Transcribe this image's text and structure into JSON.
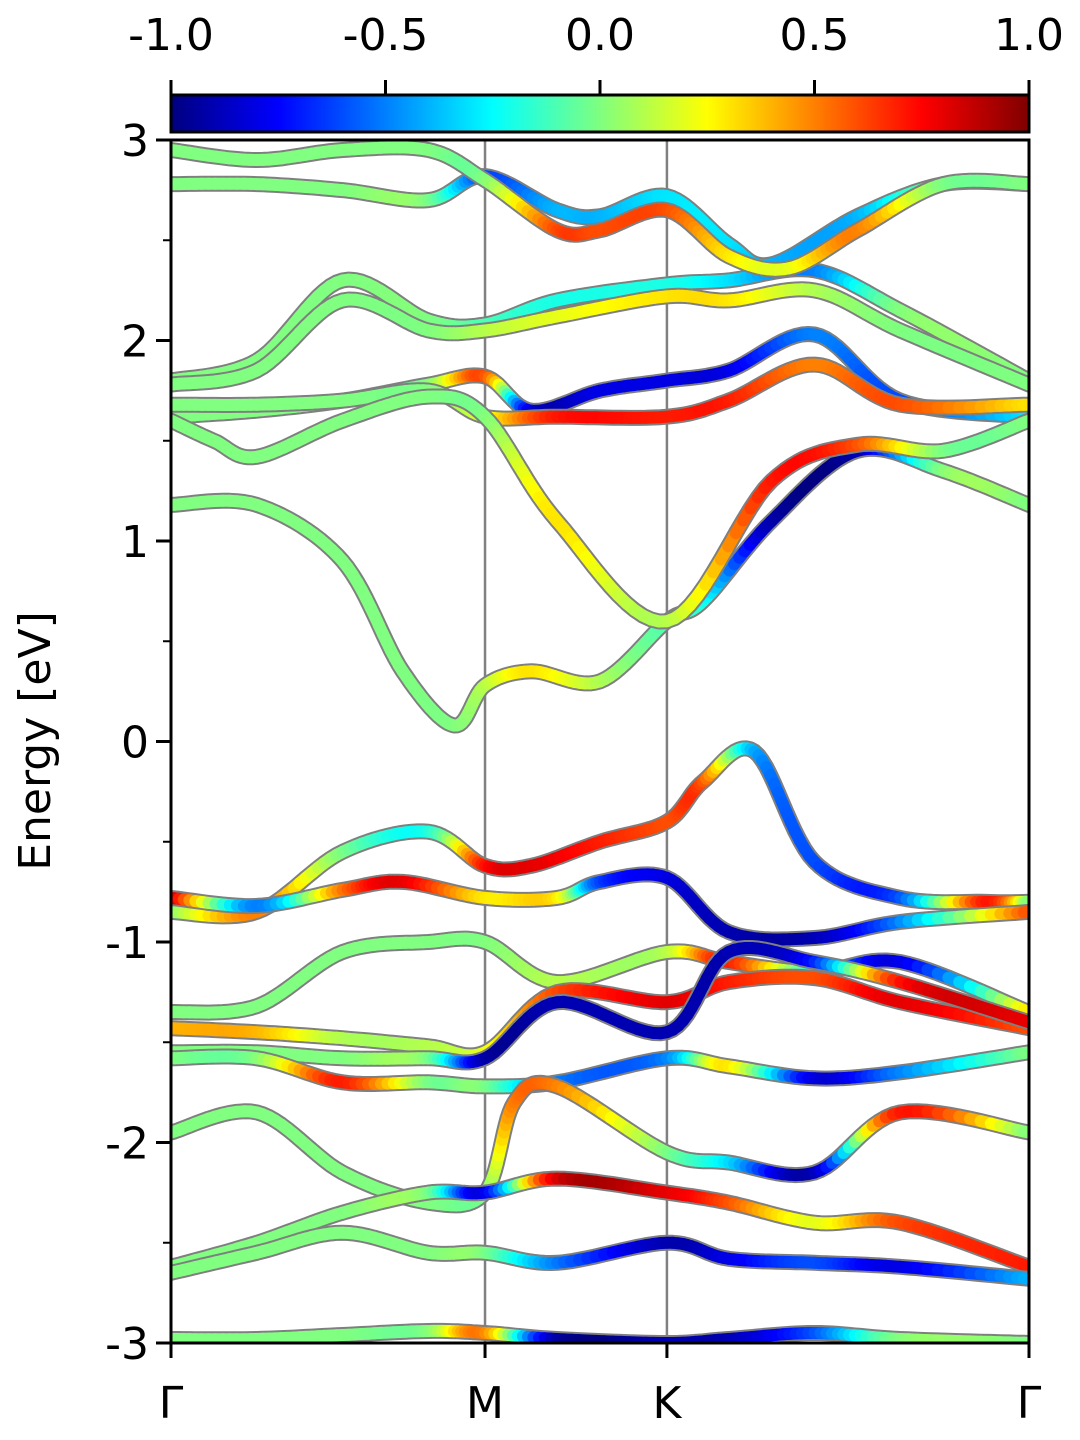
{
  "chart_data": {
    "type": "line",
    "title": "",
    "xlabel": "",
    "ylabel": "Energy [eV]",
    "ylim": [
      -3,
      3
    ],
    "yticks": [
      {
        "value": 3,
        "label": "3"
      },
      {
        "value": 2,
        "label": "2"
      },
      {
        "value": 1,
        "label": "1"
      },
      {
        "value": 0,
        "label": "0"
      },
      {
        "value": -1,
        "label": "-1"
      },
      {
        "value": -2,
        "label": "-2"
      },
      {
        "value": -3,
        "label": "-3"
      }
    ],
    "k_path": [
      {
        "label": "Γ",
        "position": 0.0
      },
      {
        "label": "M",
        "position": 0.366
      },
      {
        "label": "K",
        "position": 0.578
      },
      {
        "label": "Γ",
        "position": 1.0
      }
    ],
    "colorbar": {
      "colormap": "jet",
      "range": [
        -1.0,
        1.0
      ],
      "ticks": [
        {
          "value": -1.0,
          "label": "-1.0"
        },
        {
          "value": -0.5,
          "label": "-0.5"
        },
        {
          "value": 0.0,
          "label": "0.0"
        },
        {
          "value": 0.5,
          "label": "0.5"
        },
        {
          "value": 1.0,
          "label": "1.0"
        }
      ]
    },
    "grid": false,
    "legend": "none",
    "line_outline_color": "#7f7f7f",
    "bands": [
      {
        "k": [
          0.0,
          0.1,
          0.2,
          0.27,
          0.33,
          0.366,
          0.42,
          0.5,
          0.578,
          0.62,
          0.7,
          0.8,
          0.9,
          1.0
        ],
        "E": [
          1.18,
          1.18,
          0.9,
          0.35,
          0.08,
          0.28,
          0.35,
          0.3,
          0.6,
          0.7,
          1.1,
          1.45,
          1.35,
          1.18
        ],
        "c": [
          0.0,
          0.0,
          0.0,
          0.0,
          0.0,
          0.1,
          0.3,
          0.1,
          -0.1,
          -0.2,
          -0.9,
          -0.9,
          0.0,
          0.0
        ]
      },
      {
        "k": [
          0.0,
          0.1,
          0.2,
          0.3,
          0.366,
          0.42,
          0.5,
          0.578,
          0.62,
          0.68,
          0.75,
          0.85,
          0.95,
          1.0
        ],
        "E": [
          -0.85,
          -0.85,
          -0.55,
          -0.45,
          -0.62,
          -0.62,
          -0.5,
          -0.4,
          -0.2,
          -0.05,
          -0.6,
          -0.78,
          -0.8,
          -0.8
        ],
        "c": [
          0.0,
          0.5,
          0.0,
          -0.2,
          0.7,
          0.8,
          0.7,
          0.6,
          0.6,
          -0.4,
          -0.6,
          -0.6,
          0.7,
          0.0
        ]
      },
      {
        "k": [
          0.0,
          0.1,
          0.2,
          0.27,
          0.366,
          0.45,
          0.5,
          0.578,
          0.65,
          0.75,
          0.85,
          1.0
        ],
        "E": [
          -0.78,
          -0.82,
          -0.74,
          -0.7,
          -0.78,
          -0.78,
          -0.7,
          -0.68,
          -0.95,
          -0.98,
          -0.9,
          -0.85
        ],
        "c": [
          0.9,
          -0.5,
          0.5,
          0.8,
          0.3,
          0.3,
          -0.6,
          -0.8,
          -0.9,
          -0.9,
          -0.5,
          0.6
        ]
      },
      {
        "k": [
          0.0,
          0.1,
          0.2,
          0.3,
          0.366,
          0.42,
          0.5,
          0.578,
          0.65,
          0.75,
          0.85,
          1.0
        ],
        "E": [
          1.62,
          1.65,
          1.7,
          1.78,
          1.82,
          1.65,
          1.75,
          1.8,
          1.85,
          2.03,
          1.7,
          1.62
        ],
        "c": [
          0.0,
          0.0,
          0.0,
          0.0,
          0.6,
          -0.8,
          -0.8,
          -0.8,
          -0.8,
          -0.5,
          -0.6,
          -0.3
        ]
      },
      {
        "k": [
          0.0,
          0.1,
          0.2,
          0.3,
          0.366,
          0.45,
          0.578,
          0.65,
          0.75,
          0.85,
          1.0
        ],
        "E": [
          1.68,
          1.68,
          1.7,
          1.75,
          1.62,
          1.62,
          1.62,
          1.7,
          1.88,
          1.68,
          1.68
        ],
        "c": [
          0.0,
          0.0,
          0.0,
          0.0,
          0.2,
          0.7,
          0.7,
          0.7,
          0.5,
          0.6,
          0.3
        ]
      },
      {
        "k": [
          0.0,
          0.05,
          0.1,
          0.2,
          0.3,
          0.366,
          0.45,
          0.578,
          0.7,
          0.8,
          0.9,
          1.0
        ],
        "E": [
          1.6,
          1.5,
          1.42,
          1.6,
          1.72,
          1.62,
          1.1,
          0.6,
          1.3,
          1.48,
          1.45,
          1.6
        ],
        "c": [
          0.0,
          0.0,
          0.0,
          0.0,
          0.0,
          0.0,
          0.3,
          0.1,
          0.7,
          0.6,
          0.0,
          0.0
        ]
      },
      {
        "k": [
          0.0,
          0.1,
          0.2,
          0.3,
          0.366,
          0.45,
          0.578,
          0.65,
          0.75,
          0.85,
          1.0
        ],
        "E": [
          1.8,
          1.9,
          2.3,
          2.1,
          2.08,
          2.2,
          2.28,
          2.3,
          2.35,
          2.15,
          1.8
        ],
        "c": [
          0.0,
          0.0,
          0.0,
          0.0,
          -0.1,
          -0.2,
          -0.2,
          -0.3,
          -0.5,
          0.0,
          0.0
        ]
      },
      {
        "k": [
          0.0,
          0.1,
          0.2,
          0.3,
          0.366,
          0.45,
          0.578,
          0.65,
          0.75,
          0.85,
          1.0
        ],
        "E": [
          1.78,
          1.85,
          2.2,
          2.05,
          2.05,
          2.12,
          2.22,
          2.2,
          2.25,
          2.05,
          1.78
        ],
        "c": [
          0.0,
          0.0,
          0.0,
          0.0,
          0.1,
          0.2,
          0.3,
          0.3,
          0.1,
          0.0,
          0.0
        ]
      },
      {
        "k": [
          0.0,
          0.1,
          0.2,
          0.3,
          0.366,
          0.45,
          0.5,
          0.578,
          0.65,
          0.7,
          0.8,
          0.9,
          1.0
        ],
        "E": [
          2.78,
          2.78,
          2.75,
          2.7,
          2.82,
          2.65,
          2.62,
          2.72,
          2.48,
          2.38,
          2.62,
          2.78,
          2.78
        ],
        "c": [
          0.0,
          0.0,
          0.0,
          0.0,
          -0.6,
          -0.4,
          -0.4,
          -0.3,
          -0.3,
          -0.4,
          -0.4,
          0.0,
          0.0
        ]
      },
      {
        "k": [
          0.0,
          0.1,
          0.2,
          0.3,
          0.366,
          0.45,
          0.5,
          0.578,
          0.65,
          0.72,
          0.8,
          0.9,
          1.0
        ],
        "E": [
          2.95,
          2.9,
          2.95,
          2.95,
          2.8,
          2.55,
          2.55,
          2.65,
          2.42,
          2.36,
          2.55,
          2.78,
          2.78
        ],
        "c": [
          0.0,
          0.0,
          0.0,
          0.0,
          0.0,
          0.6,
          0.6,
          0.6,
          0.3,
          0.2,
          0.5,
          0.0,
          0.0
        ]
      },
      {
        "k": [
          0.0,
          0.1,
          0.2,
          0.3,
          0.366,
          0.45,
          0.578,
          0.65,
          0.75,
          0.85,
          1.0
        ],
        "E": [
          -1.35,
          -1.32,
          -1.05,
          -1.0,
          -1.0,
          -1.2,
          -1.05,
          -1.1,
          -1.15,
          -1.1,
          -1.35
        ],
        "c": [
          0.0,
          0.0,
          0.0,
          0.0,
          0.0,
          0.1,
          0.1,
          0.7,
          -0.2,
          -0.8,
          0.3
        ]
      },
      {
        "k": [
          0.0,
          0.1,
          0.2,
          0.3,
          0.366,
          0.45,
          0.578,
          0.65,
          0.75,
          0.85,
          1.0
        ],
        "E": [
          -1.43,
          -1.45,
          -1.48,
          -1.52,
          -1.55,
          -1.25,
          -1.3,
          -1.2,
          -1.18,
          -1.3,
          -1.43
        ],
        "c": [
          0.4,
          0.4,
          0.1,
          0.1,
          0.2,
          0.6,
          0.8,
          0.7,
          0.6,
          0.8,
          0.6
        ]
      },
      {
        "k": [
          0.0,
          0.1,
          0.2,
          0.3,
          0.366,
          0.45,
          0.578,
          0.65,
          0.75,
          0.85,
          1.0
        ],
        "E": [
          -1.55,
          -1.55,
          -1.58,
          -1.58,
          -1.58,
          -1.3,
          -1.45,
          -1.05,
          -1.1,
          -1.2,
          -1.4
        ],
        "c": [
          0.0,
          0.0,
          0.0,
          0.0,
          -0.9,
          -0.9,
          -0.9,
          -0.9,
          -0.7,
          0.7,
          0.8
        ]
      },
      {
        "k": [
          0.0,
          0.1,
          0.2,
          0.3,
          0.366,
          0.45,
          0.578,
          0.65,
          0.75,
          0.85,
          1.0
        ],
        "E": [
          -1.58,
          -1.58,
          -1.7,
          -1.7,
          -1.72,
          -1.7,
          -1.58,
          -1.62,
          -1.68,
          -1.65,
          -1.55
        ],
        "c": [
          0.0,
          0.0,
          0.7,
          0.0,
          0.0,
          -0.5,
          -0.5,
          0.3,
          -0.8,
          -0.5,
          0.0
        ]
      },
      {
        "k": [
          0.0,
          0.1,
          0.2,
          0.3,
          0.366,
          0.4,
          0.45,
          0.578,
          0.65,
          0.75,
          0.85,
          1.0
        ],
        "E": [
          -1.95,
          -1.85,
          -2.15,
          -2.3,
          -2.25,
          -1.8,
          -1.72,
          -2.05,
          -2.1,
          -2.15,
          -1.85,
          -1.95
        ],
        "c": [
          0.0,
          0.0,
          0.0,
          0.0,
          0.0,
          0.5,
          0.5,
          0.0,
          -0.3,
          -0.9,
          0.7,
          0.0
        ]
      },
      {
        "k": [
          0.0,
          0.1,
          0.2,
          0.3,
          0.366,
          0.45,
          0.578,
          0.65,
          0.75,
          0.85,
          1.0
        ],
        "E": [
          -2.62,
          -2.5,
          -2.35,
          -2.25,
          -2.25,
          -2.18,
          -2.25,
          -2.3,
          -2.4,
          -2.4,
          -2.62
        ],
        "c": [
          0.0,
          0.0,
          0.0,
          0.0,
          -0.8,
          0.8,
          0.8,
          0.6,
          0.2,
          0.6,
          0.7
        ]
      },
      {
        "k": [
          0.0,
          0.1,
          0.2,
          0.3,
          0.366,
          0.45,
          0.578,
          0.65,
          0.75,
          0.85,
          1.0
        ],
        "E": [
          -2.65,
          -2.55,
          -2.45,
          -2.55,
          -2.55,
          -2.6,
          -2.5,
          -2.58,
          -2.6,
          -2.62,
          -2.68
        ],
        "c": [
          0.0,
          0.0,
          0.0,
          0.0,
          0.0,
          -0.5,
          -0.9,
          -0.8,
          -0.6,
          -0.8,
          -0.4
        ]
      },
      {
        "k": [
          0.0,
          0.1,
          0.2,
          0.3,
          0.366,
          0.45,
          0.578,
          0.65,
          0.75,
          0.85,
          1.0
        ],
        "E": [
          -2.98,
          -2.98,
          -2.96,
          -2.94,
          -2.95,
          -2.98,
          -3.0,
          -2.98,
          -2.95,
          -2.98,
          -3.0
        ],
        "c": [
          0.0,
          0.0,
          0.0,
          0.0,
          0.5,
          -0.9,
          -0.9,
          -0.9,
          -0.6,
          0.0,
          0.0
        ]
      }
    ]
  }
}
